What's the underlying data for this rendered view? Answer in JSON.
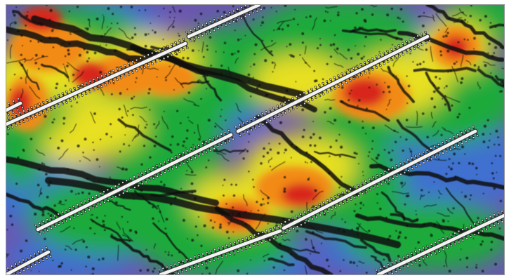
{
  "image": {
    "subject": "heatmap-with-fractures-and-wellbores",
    "colors": {
      "low": "#6b57b0",
      "low_mid": "#3f6fd0",
      "mid": "#1faa3a",
      "mid_high": "#e8e020",
      "high": "#f28a12",
      "peak": "#d8281a",
      "fracture": "#0a0a0a",
      "wellbore": "#f2f2f2",
      "stage_tick": "#222222"
    },
    "wellbore_count": 9,
    "stages_per_well": "many"
  }
}
